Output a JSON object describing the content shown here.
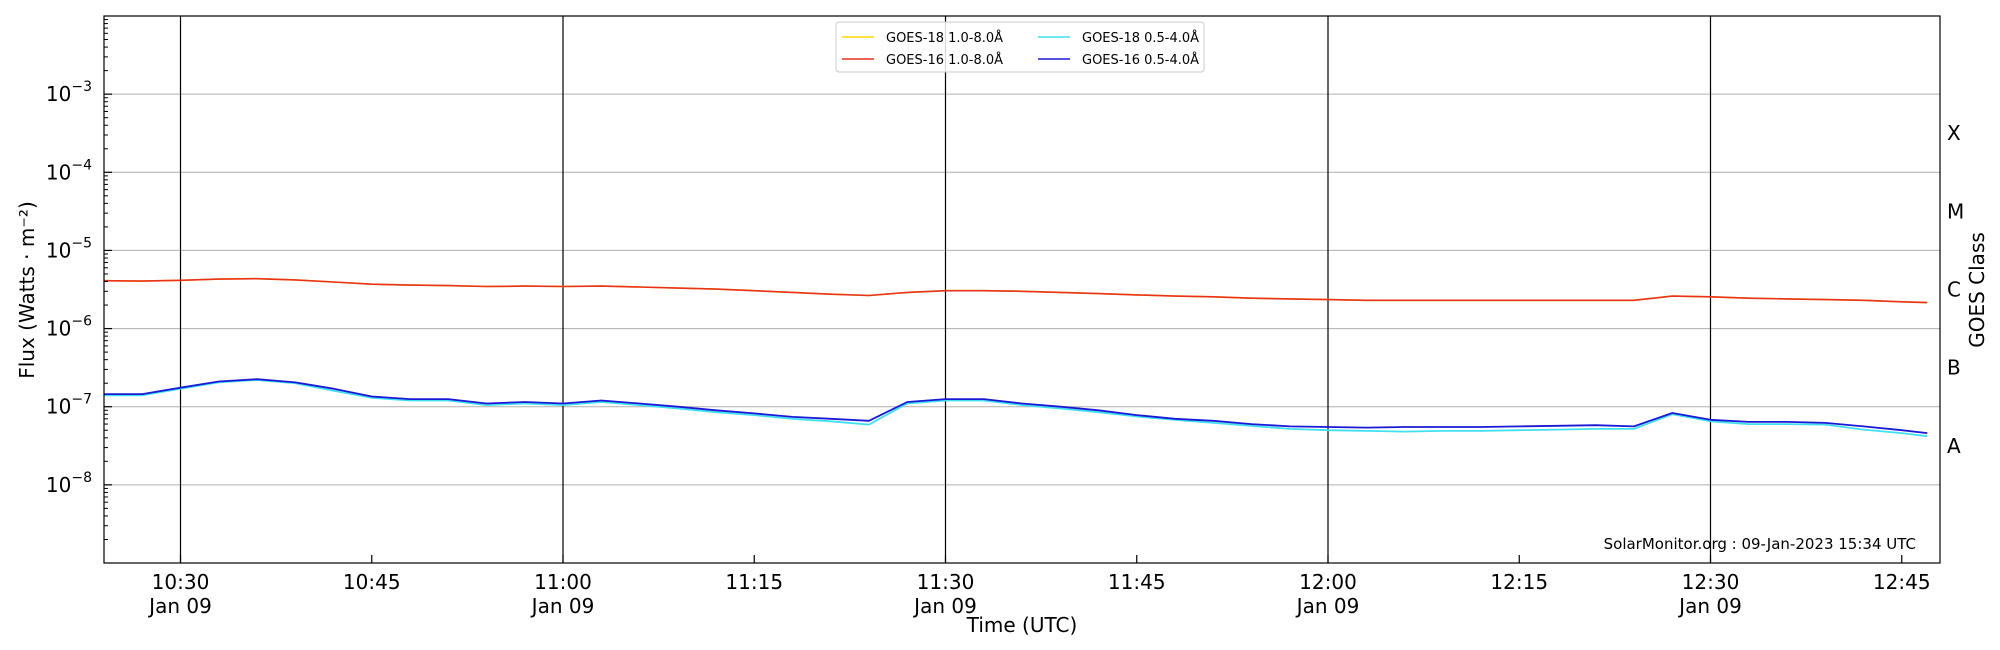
{
  "chart_data": {
    "type": "line",
    "xlabel": "Time (UTC)",
    "ylabel": "Flux (Watts · m⁻²)",
    "y2label": "GOES Class",
    "yscale": "log",
    "ylim": [
      1e-09,
      0.01
    ],
    "xlim": [
      "10:24",
      "12:48"
    ],
    "grid": "horizontal at decades, vertical at half hours",
    "legend_position": "top-center",
    "x_ticks": [
      {
        "t": "10:30",
        "label": "10:30",
        "sub": "Jan 09"
      },
      {
        "t": "10:45",
        "label": "10:45",
        "sub": ""
      },
      {
        "t": "11:00",
        "label": "11:00",
        "sub": "Jan 09"
      },
      {
        "t": "11:15",
        "label": "11:15",
        "sub": ""
      },
      {
        "t": "11:30",
        "label": "11:30",
        "sub": "Jan 09"
      },
      {
        "t": "11:45",
        "label": "11:45",
        "sub": ""
      },
      {
        "t": "12:00",
        "label": "12:00",
        "sub": "Jan 09"
      },
      {
        "t": "12:15",
        "label": "12:15",
        "sub": ""
      },
      {
        "t": "12:30",
        "label": "12:30",
        "sub": "Jan 09"
      },
      {
        "t": "12:45",
        "label": "12:45",
        "sub": ""
      }
    ],
    "y_ticks": [
      {
        "value": 1e-08,
        "base": "10",
        "exp": "−8"
      },
      {
        "value": 1e-07,
        "base": "10",
        "exp": "−7"
      },
      {
        "value": 1e-06,
        "base": "10",
        "exp": "−6"
      },
      {
        "value": 1e-05,
        "base": "10",
        "exp": "−5"
      },
      {
        "value": 0.0001,
        "base": "10",
        "exp": "−4"
      },
      {
        "value": 0.001,
        "base": "10",
        "exp": "−3"
      }
    ],
    "goes_classes": [
      {
        "label": "A",
        "value": 3.16e-08
      },
      {
        "label": "B",
        "value": 3.16e-07
      },
      {
        "label": "C",
        "value": 3.16e-06
      },
      {
        "label": "M",
        "value": 3.16e-05
      },
      {
        "label": "X",
        "value": 0.000316
      }
    ],
    "x": [
      "10:24",
      "10:27",
      "10:30",
      "10:33",
      "10:36",
      "10:39",
      "10:42",
      "10:45",
      "10:48",
      "10:51",
      "10:54",
      "10:57",
      "11:00",
      "11:03",
      "11:06",
      "11:09",
      "11:12",
      "11:15",
      "11:18",
      "11:21",
      "11:24",
      "11:27",
      "11:30",
      "11:33",
      "11:36",
      "11:39",
      "11:42",
      "11:45",
      "11:48",
      "11:51",
      "11:54",
      "11:57",
      "12:00",
      "12:03",
      "12:06",
      "12:09",
      "12:12",
      "12:15",
      "12:18",
      "12:21",
      "12:24",
      "12:27",
      "12:30",
      "12:33",
      "12:36",
      "12:39",
      "12:42",
      "12:45",
      "12:47"
    ],
    "series": [
      {
        "name": "GOES-18 1.0-8.0Å",
        "color": "#ffd700",
        "values": [
          4.1e-06,
          4.05e-06,
          4.15e-06,
          4.3e-06,
          4.35e-06,
          4.2e-06,
          3.95e-06,
          3.7e-06,
          3.6e-06,
          3.55e-06,
          3.45e-06,
          3.5e-06,
          3.45e-06,
          3.5e-06,
          3.4e-06,
          3.3e-06,
          3.2e-06,
          3.05e-06,
          2.9e-06,
          2.75e-06,
          2.65e-06,
          2.9e-06,
          3.05e-06,
          3.05e-06,
          3e-06,
          2.9e-06,
          2.8e-06,
          2.7e-06,
          2.6e-06,
          2.55e-06,
          2.45e-06,
          2.4e-06,
          2.35e-06,
          2.3e-06,
          2.3e-06,
          2.3e-06,
          2.3e-06,
          2.3e-06,
          2.3e-06,
          2.3e-06,
          2.3e-06,
          2.6e-06,
          2.55e-06,
          2.45e-06,
          2.4e-06,
          2.35e-06,
          2.3e-06,
          2.2e-06,
          2.15e-06
        ]
      },
      {
        "name": "GOES-18 0.5-4.0Å",
        "color": "#40e0f0",
        "values": [
          1.4e-07,
          1.4e-07,
          1.7e-07,
          2.05e-07,
          2.2e-07,
          2e-07,
          1.6e-07,
          1.3e-07,
          1.2e-07,
          1.2e-07,
          1.05e-07,
          1.1e-07,
          1.05e-07,
          1.15e-07,
          1.05e-07,
          9.5e-08,
          8.5e-08,
          7.8e-08,
          7e-08,
          6.5e-08,
          5.9e-08,
          1.1e-07,
          1.2e-07,
          1.2e-07,
          1.05e-07,
          9.5e-08,
          8.5e-08,
          7.5e-08,
          6.8e-08,
          6.2e-08,
          5.7e-08,
          5.2e-08,
          5e-08,
          4.9e-08,
          4.8e-08,
          4.9e-08,
          4.9e-08,
          5e-08,
          5.1e-08,
          5.2e-08,
          5.2e-08,
          8e-08,
          6.5e-08,
          6e-08,
          6e-08,
          5.9e-08,
          5.1e-08,
          4.6e-08,
          4.2e-08
        ]
      },
      {
        "name": "GOES-16 1.0-8.0Å",
        "color": "#e8321e",
        "values": [
          4.1e-06,
          4.05e-06,
          4.15e-06,
          4.3e-06,
          4.35e-06,
          4.2e-06,
          3.95e-06,
          3.7e-06,
          3.6e-06,
          3.55e-06,
          3.45e-06,
          3.5e-06,
          3.45e-06,
          3.5e-06,
          3.4e-06,
          3.3e-06,
          3.2e-06,
          3.05e-06,
          2.9e-06,
          2.75e-06,
          2.65e-06,
          2.9e-06,
          3.05e-06,
          3.05e-06,
          3e-06,
          2.9e-06,
          2.8e-06,
          2.7e-06,
          2.6e-06,
          2.55e-06,
          2.45e-06,
          2.4e-06,
          2.35e-06,
          2.3e-06,
          2.3e-06,
          2.3e-06,
          2.3e-06,
          2.3e-06,
          2.3e-06,
          2.3e-06,
          2.3e-06,
          2.6e-06,
          2.55e-06,
          2.45e-06,
          2.4e-06,
          2.35e-06,
          2.3e-06,
          2.2e-06,
          2.15e-06
        ]
      },
      {
        "name": "GOES-16 0.5-4.0Å",
        "color": "#1a1ad6",
        "values": [
          1.45e-07,
          1.45e-07,
          1.75e-07,
          2.1e-07,
          2.25e-07,
          2.05e-07,
          1.7e-07,
          1.35e-07,
          1.25e-07,
          1.25e-07,
          1.1e-07,
          1.15e-07,
          1.1e-07,
          1.2e-07,
          1.1e-07,
          1e-07,
          9e-08,
          8.2e-08,
          7.4e-08,
          7e-08,
          6.6e-08,
          1.15e-07,
          1.25e-07,
          1.25e-07,
          1.1e-07,
          1e-07,
          9e-08,
          7.8e-08,
          7e-08,
          6.6e-08,
          6e-08,
          5.6e-08,
          5.5e-08,
          5.4e-08,
          5.5e-08,
          5.5e-08,
          5.5e-08,
          5.6e-08,
          5.7e-08,
          5.8e-08,
          5.6e-08,
          8.3e-08,
          6.8e-08,
          6.4e-08,
          6.4e-08,
          6.2e-08,
          5.6e-08,
          5e-08,
          4.6e-08
        ]
      }
    ],
    "legend_order": [
      0,
      2,
      1,
      3
    ],
    "watermark": "SolarMonitor.org : 09-Jan-2023 15:34 UTC"
  }
}
